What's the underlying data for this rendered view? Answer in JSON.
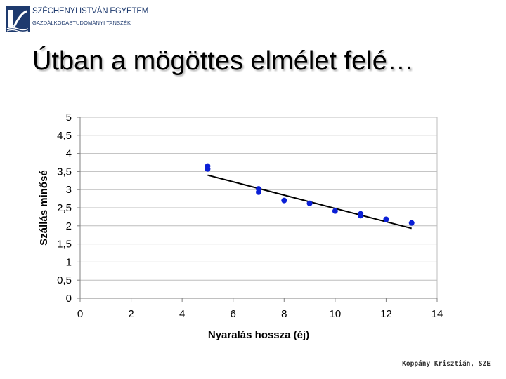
{
  "header": {
    "org_name": "SZÉCHENYI ISTVÁN EGYETEM",
    "org_dept": "GAZDÁLKODÁSTUDOMÁNYI TANSZÉK",
    "logo_icon": "university-bridge-logo-icon"
  },
  "slide": {
    "title": "Útban a mögöttes elmélet felé…"
  },
  "footer": {
    "author": "Koppány Krisztián, SZE"
  },
  "colors": {
    "points": "#0a1fd6",
    "trendline": "#000000",
    "gridlines": "#bdbdbd",
    "logo": "#1e3a6e"
  },
  "chart_data": {
    "type": "scatter",
    "title": "",
    "xlabel": "Nyaralás hossza (éj)",
    "ylabel": "Szállás minősé",
    "xlim": [
      0,
      14
    ],
    "ylim": [
      0,
      5
    ],
    "x_ticks": [
      "0",
      "2",
      "4",
      "6",
      "8",
      "10",
      "12",
      "14"
    ],
    "y_ticks": [
      "0",
      "0,5",
      "1",
      "1,5",
      "2",
      "2,5",
      "3",
      "3,5",
      "4",
      "4,5",
      "5"
    ],
    "grid": "horizontal",
    "legend": "none",
    "points": [
      {
        "x": 5,
        "y": 3.65
      },
      {
        "x": 5,
        "y": 3.57
      },
      {
        "x": 7,
        "y": 3.02
      },
      {
        "x": 7,
        "y": 2.93
      },
      {
        "x": 8,
        "y": 2.7
      },
      {
        "x": 9,
        "y": 2.62
      },
      {
        "x": 10,
        "y": 2.41
      },
      {
        "x": 11,
        "y": 2.33
      },
      {
        "x": 11,
        "y": 2.28
      },
      {
        "x": 12,
        "y": 2.18
      },
      {
        "x": 13,
        "y": 2.08
      }
    ],
    "trendline": {
      "x1": 5,
      "y1": 3.4,
      "x2": 13,
      "y2": 1.93
    }
  }
}
